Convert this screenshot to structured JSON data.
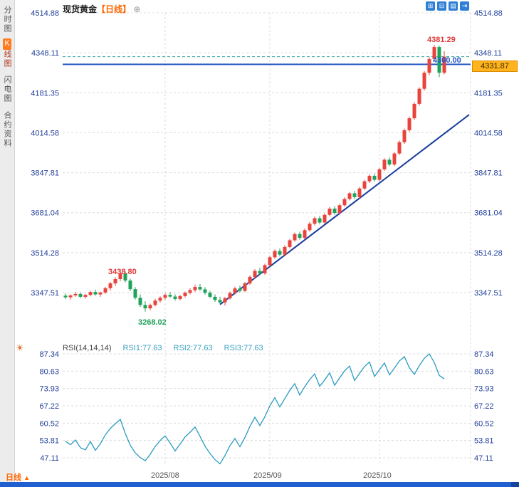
{
  "sidebar": {
    "items": [
      {
        "label": "分时图",
        "active": false
      },
      {
        "label": "K线图",
        "first": "K",
        "rest": "线图",
        "active": true
      },
      {
        "label": "闪电图",
        "active": false
      },
      {
        "label": "合约资料",
        "active": false
      }
    ]
  },
  "header": {
    "symbol": "现货黄金",
    "period": "【日线】",
    "expand": "⊕"
  },
  "toolbar": {
    "icons": [
      {
        "name": "grid-layout-icon",
        "glyph": "⊞"
      },
      {
        "name": "split-layout-icon",
        "glyph": "⊟"
      },
      {
        "name": "kline-panel-icon",
        "glyph": "▤"
      },
      {
        "name": "export-icon",
        "glyph": "⇥"
      }
    ]
  },
  "footer": {
    "period": "日线",
    "arrow": "▲",
    "months": [
      "2025/08",
      "2025/09",
      "2025/10"
    ]
  },
  "chart_data": [
    {
      "type": "candlestick",
      "title": "现货黄金 日线",
      "y_ticks": [
        4514.88,
        4348.11,
        4181.35,
        4014.58,
        3847.81,
        3681.04,
        3514.28,
        3347.51
      ],
      "ylim": [
        3347.51,
        4514.88
      ],
      "x": [
        "2025/08",
        "2025/09",
        "2025/10"
      ],
      "month_tick_indices": [
        20,
        41,
        63
      ],
      "hline_price": 4300.0,
      "last_price": 4331.87,
      "trendline": [
        {
          "i": 31,
          "price": 3298
        },
        {
          "i": 81,
          "price": 4090
        }
      ],
      "annotations": {
        "high": "4381.29",
        "swing_high": "3438.80",
        "swing_low": "3268.02",
        "hline": "4300.00",
        "last": "4331.87"
      },
      "colors": {
        "up": "#e8433c",
        "down": "#1ea35a",
        "trend": "#1b3e9e",
        "hline": "#2457c5",
        "last_dash": "#2aa198",
        "grid": "#dcdcdc",
        "axis_text": "#23419b"
      },
      "candles": [
        [
          3335,
          3345,
          3320,
          3328
        ],
        [
          3328,
          3340,
          3318,
          3336
        ],
        [
          3336,
          3350,
          3330,
          3342
        ],
        [
          3342,
          3348,
          3325,
          3330
        ],
        [
          3330,
          3342,
          3322,
          3338
        ],
        [
          3338,
          3355,
          3332,
          3350
        ],
        [
          3350,
          3360,
          3335,
          3340
        ],
        [
          3340,
          3352,
          3330,
          3348
        ],
        [
          3348,
          3372,
          3342,
          3366
        ],
        [
          3366,
          3392,
          3356,
          3386
        ],
        [
          3386,
          3412,
          3376,
          3404
        ],
        [
          3404,
          3438.8,
          3396,
          3428
        ],
        [
          3428,
          3436,
          3390,
          3398
        ],
        [
          3398,
          3406,
          3354,
          3362
        ],
        [
          3362,
          3370,
          3318,
          3326
        ],
        [
          3326,
          3340,
          3288,
          3296
        ],
        [
          3296,
          3312,
          3268.02,
          3282
        ],
        [
          3282,
          3302,
          3274,
          3296
        ],
        [
          3296,
          3322,
          3290,
          3314
        ],
        [
          3314,
          3332,
          3306,
          3326
        ],
        [
          3326,
          3346,
          3318,
          3338
        ],
        [
          3338,
          3350,
          3326,
          3331
        ],
        [
          3331,
          3340,
          3314,
          3321
        ],
        [
          3321,
          3338,
          3315,
          3333
        ],
        [
          3333,
          3352,
          3327,
          3347
        ],
        [
          3347,
          3366,
          3340,
          3358
        ],
        [
          3358,
          3381,
          3350,
          3371
        ],
        [
          3371,
          3383,
          3355,
          3361
        ],
        [
          3361,
          3370,
          3339,
          3347
        ],
        [
          3347,
          3355,
          3324,
          3330
        ],
        [
          3330,
          3340,
          3309,
          3317
        ],
        [
          3317,
          3330,
          3299,
          3307
        ],
        [
          3307,
          3330,
          3294,
          3324
        ],
        [
          3324,
          3352,
          3318,
          3346
        ],
        [
          3346,
          3372,
          3340,
          3365
        ],
        [
          3365,
          3378,
          3348,
          3355
        ],
        [
          3355,
          3392,
          3350,
          3386
        ],
        [
          3386,
          3420,
          3380,
          3413
        ],
        [
          3413,
          3445,
          3406,
          3438
        ],
        [
          3438,
          3452,
          3420,
          3428
        ],
        [
          3428,
          3468,
          3422,
          3462
        ],
        [
          3462,
          3502,
          3456,
          3495
        ],
        [
          3495,
          3528,
          3488,
          3521
        ],
        [
          3521,
          3532,
          3498,
          3506
        ],
        [
          3506,
          3545,
          3500,
          3538
        ],
        [
          3538,
          3572,
          3532,
          3566
        ],
        [
          3566,
          3598,
          3560,
          3592
        ],
        [
          3592,
          3602,
          3568,
          3576
        ],
        [
          3576,
          3615,
          3570,
          3608
        ],
        [
          3608,
          3642,
          3602,
          3635
        ],
        [
          3635,
          3665,
          3628,
          3658
        ],
        [
          3658,
          3668,
          3632,
          3640
        ],
        [
          3640,
          3678,
          3635,
          3672
        ],
        [
          3672,
          3705,
          3666,
          3698
        ],
        [
          3698,
          3708,
          3672,
          3680
        ],
        [
          3680,
          3718,
          3675,
          3712
        ],
        [
          3712,
          3745,
          3706,
          3738
        ],
        [
          3738,
          3768,
          3732,
          3762
        ],
        [
          3762,
          3772,
          3738,
          3746
        ],
        [
          3746,
          3788,
          3740,
          3782
        ],
        [
          3782,
          3818,
          3776,
          3812
        ],
        [
          3812,
          3842,
          3805,
          3835
        ],
        [
          3835,
          3845,
          3810,
          3818
        ],
        [
          3818,
          3868,
          3812,
          3862
        ],
        [
          3862,
          3908,
          3856,
          3902
        ],
        [
          3902,
          3912,
          3875,
          3882
        ],
        [
          3882,
          3935,
          3876,
          3928
        ],
        [
          3928,
          3982,
          3922,
          3975
        ],
        [
          3975,
          4032,
          3968,
          4025
        ],
        [
          4025,
          4082,
          4018,
          4075
        ],
        [
          4075,
          4142,
          4068,
          4135
        ],
        [
          4135,
          4205,
          4128,
          4198
        ],
        [
          4198,
          4272,
          4190,
          4265
        ],
        [
          4265,
          4330,
          4255,
          4322
        ],
        [
          4322,
          4381.29,
          4312,
          4372
        ],
        [
          4372,
          4378,
          4246,
          4265
        ],
        [
          4265,
          4355,
          4258,
          4331.87
        ]
      ]
    },
    {
      "type": "line",
      "name": "RSI",
      "header": {
        "label": "RSI(14,14,14)",
        "series": [
          {
            "label": "RSI1:77.63"
          },
          {
            "label": "RSI2:77.63"
          },
          {
            "label": "RSI3:77.63"
          }
        ]
      },
      "y_ticks": [
        87.34,
        80.63,
        73.93,
        67.22,
        60.52,
        53.81,
        47.11
      ],
      "color": "#2b9bbf",
      "values": [
        53.5,
        52.2,
        54,
        51,
        50.2,
        53.4,
        50,
        52.6,
        56,
        58.5,
        60.3,
        62,
        56.5,
        52,
        49,
        47.2,
        46,
        48.5,
        51.5,
        53.8,
        55.6,
        52.8,
        49.8,
        52.4,
        55.2,
        57,
        59,
        55.4,
        51.6,
        48.8,
        46.4,
        44.8,
        48,
        51.8,
        54.6,
        51.4,
        55,
        59.2,
        62.8,
        59.6,
        63,
        67.2,
        70.4,
        66.8,
        70,
        73.2,
        75.8,
        71.4,
        74.6,
        77.4,
        79.6,
        74.8,
        77.2,
        80,
        75.2,
        78,
        80.8,
        82.6,
        77,
        79.8,
        82.4,
        84.2,
        78.6,
        81.2,
        83.8,
        79.2,
        81.8,
        84.6,
        86.2,
        82,
        79.4,
        82.8,
        85.6,
        87.3,
        84,
        79,
        77.63
      ]
    }
  ]
}
